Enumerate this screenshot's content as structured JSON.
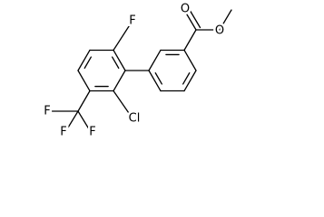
{
  "atoms": {
    "fluoro": "F",
    "chloro": "Cl",
    "trifluoromethyl": [
      "F",
      "F",
      "F"
    ],
    "carbonyl_oxygen": "O",
    "ester_oxygen": "O"
  }
}
